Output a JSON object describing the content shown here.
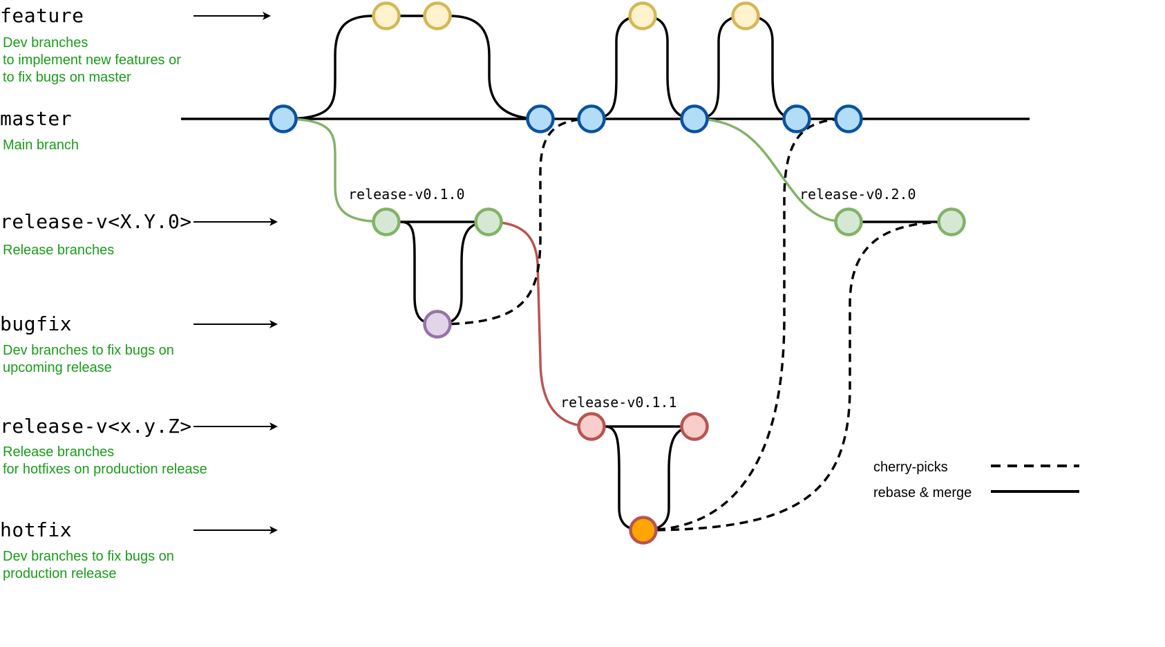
{
  "lanes": [
    {
      "id": "feature",
      "name": "feature",
      "description": "Dev branches\nto implement new features or\nto fix bugs on master",
      "has_arrow": true
    },
    {
      "id": "master",
      "name": "master",
      "description": "Main branch",
      "has_arrow": false
    },
    {
      "id": "release-xy0",
      "name": "release-v<X.Y.0>",
      "description": "Release branches",
      "has_arrow": true
    },
    {
      "id": "bugfix",
      "name": "bugfix",
      "description": "Dev branches to fix bugs on\nupcoming release",
      "has_arrow": true
    },
    {
      "id": "release-xyz",
      "name": "release-v<x.y.Z>",
      "description": "Release branches\nfor hotfixes on production release",
      "has_arrow": true
    },
    {
      "id": "hotfix",
      "name": "hotfix",
      "description": "Dev branches to fix bugs on\nproduction release",
      "has_arrow": true
    }
  ],
  "branch_labels": {
    "r010": "release-v0.1.0",
    "r020": "release-v0.2.0",
    "r011": "release-v0.1.1"
  },
  "legend": {
    "cherry_picks": "cherry-picks",
    "rebase_merge": "rebase & merge"
  },
  "colors": {
    "master_fill": "#b3dcf7",
    "master_stroke": "#0a52a0",
    "feature_fill": "#fff2cc",
    "feature_stroke": "#d6b656",
    "release_fill": "#d5e8d4",
    "release_stroke": "#82b366",
    "bugfix_fill": "#e1d5e7",
    "bugfix_stroke": "#9673a6",
    "patch_fill": "#f8cecc",
    "patch_stroke": "#b85450",
    "hotfix_fill": "#ffa500",
    "hotfix_stroke": "#b85450",
    "release_line": "#82b366",
    "patch_line": "#b85450",
    "text_green": "#1a9b1a"
  }
}
